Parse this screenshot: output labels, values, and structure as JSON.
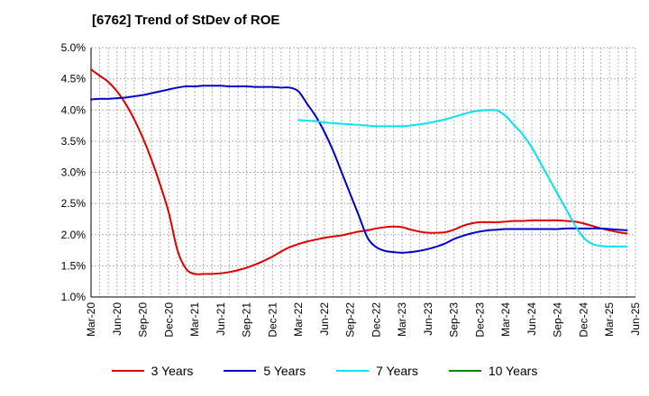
{
  "chart_data": {
    "type": "line",
    "title": "[6762]  Trend of StDev of ROE",
    "xlabel": "",
    "ylabel": "",
    "ylim": [
      1.0,
      5.0
    ],
    "y_ticks": [
      "1.0%",
      "1.5%",
      "2.0%",
      "2.5%",
      "3.0%",
      "3.5%",
      "4.0%",
      "4.5%",
      "5.0%"
    ],
    "x_ticks": [
      "Mar-20",
      "Jun-20",
      "Sep-20",
      "Dec-20",
      "Mar-21",
      "Jun-21",
      "Sep-21",
      "Dec-21",
      "Mar-22",
      "Jun-22",
      "Sep-22",
      "Dec-22",
      "Mar-23",
      "Jun-23",
      "Sep-23",
      "Dec-23",
      "Mar-24",
      "Jun-24",
      "Sep-24",
      "Dec-24",
      "Mar-25",
      "Jun-25"
    ],
    "grid": true,
    "legend_position": "bottom",
    "series": [
      {
        "name": "3 Years",
        "color": "#dd0000",
        "points": [
          [
            "Mar-20",
            4.65
          ],
          [
            "Apr-20",
            4.55
          ],
          [
            "May-20",
            4.45
          ],
          [
            "Jun-20",
            4.3
          ],
          [
            "Jul-20",
            4.1
          ],
          [
            "Aug-20",
            3.85
          ],
          [
            "Sep-20",
            3.55
          ],
          [
            "Oct-20",
            3.2
          ],
          [
            "Nov-20",
            2.8
          ],
          [
            "Dec-20",
            2.35
          ],
          [
            "Jan-21",
            1.75
          ],
          [
            "Feb-21",
            1.45
          ],
          [
            "Mar-21",
            1.37
          ],
          [
            "Apr-21",
            1.37
          ],
          [
            "May-21",
            1.37
          ],
          [
            "Jun-21",
            1.38
          ],
          [
            "Jul-21",
            1.4
          ],
          [
            "Aug-21",
            1.43
          ],
          [
            "Sep-21",
            1.47
          ],
          [
            "Oct-21",
            1.52
          ],
          [
            "Nov-21",
            1.58
          ],
          [
            "Dec-21",
            1.65
          ],
          [
            "Jan-22",
            1.73
          ],
          [
            "Feb-22",
            1.8
          ],
          [
            "Mar-22",
            1.85
          ],
          [
            "Apr-22",
            1.89
          ],
          [
            "May-22",
            1.92
          ],
          [
            "Jun-22",
            1.95
          ],
          [
            "Jul-22",
            1.97
          ],
          [
            "Aug-22",
            1.99
          ],
          [
            "Sep-22",
            2.02
          ],
          [
            "Oct-22",
            2.05
          ],
          [
            "Nov-22",
            2.07
          ],
          [
            "Dec-22",
            2.1
          ],
          [
            "Jan-23",
            2.12
          ],
          [
            "Feb-23",
            2.13
          ],
          [
            "Mar-23",
            2.12
          ],
          [
            "Apr-23",
            2.08
          ],
          [
            "May-23",
            2.05
          ],
          [
            "Jun-23",
            2.03
          ],
          [
            "Jul-23",
            2.03
          ],
          [
            "Aug-23",
            2.04
          ],
          [
            "Sep-23",
            2.08
          ],
          [
            "Oct-23",
            2.14
          ],
          [
            "Nov-23",
            2.18
          ],
          [
            "Dec-23",
            2.2
          ],
          [
            "Jan-24",
            2.2
          ],
          [
            "Feb-24",
            2.2
          ],
          [
            "Mar-24",
            2.21
          ],
          [
            "Apr-24",
            2.22
          ],
          [
            "May-24",
            2.22
          ],
          [
            "Jun-24",
            2.23
          ],
          [
            "Jul-24",
            2.23
          ],
          [
            "Aug-24",
            2.23
          ],
          [
            "Sep-24",
            2.23
          ],
          [
            "Oct-24",
            2.22
          ],
          [
            "Nov-24",
            2.21
          ],
          [
            "Dec-24",
            2.18
          ],
          [
            "Jan-25",
            2.14
          ],
          [
            "Feb-25",
            2.1
          ],
          [
            "Mar-25",
            2.07
          ],
          [
            "Apr-25",
            2.04
          ],
          [
            "May-25",
            2.02
          ]
        ]
      },
      {
        "name": "5 Years",
        "color": "#0000cc",
        "points": [
          [
            "Mar-20",
            4.17
          ],
          [
            "Apr-20",
            4.18
          ],
          [
            "May-20",
            4.18
          ],
          [
            "Jun-20",
            4.19
          ],
          [
            "Jul-20",
            4.2
          ],
          [
            "Aug-20",
            4.22
          ],
          [
            "Sep-20",
            4.24
          ],
          [
            "Oct-20",
            4.27
          ],
          [
            "Nov-20",
            4.3
          ],
          [
            "Dec-20",
            4.33
          ],
          [
            "Jan-21",
            4.36
          ],
          [
            "Feb-21",
            4.38
          ],
          [
            "Mar-21",
            4.38
          ],
          [
            "Apr-21",
            4.39
          ],
          [
            "May-21",
            4.39
          ],
          [
            "Jun-21",
            4.39
          ],
          [
            "Jul-21",
            4.38
          ],
          [
            "Aug-21",
            4.38
          ],
          [
            "Sep-21",
            4.38
          ],
          [
            "Oct-21",
            4.37
          ],
          [
            "Nov-21",
            4.37
          ],
          [
            "Dec-21",
            4.37
          ],
          [
            "Jan-22",
            4.36
          ],
          [
            "Feb-22",
            4.36
          ],
          [
            "Mar-22",
            4.3
          ],
          [
            "Apr-22",
            4.1
          ],
          [
            "May-22",
            3.9
          ],
          [
            "Jun-22",
            3.65
          ],
          [
            "Jul-22",
            3.35
          ],
          [
            "Aug-22",
            3.0
          ],
          [
            "Sep-22",
            2.65
          ],
          [
            "Oct-22",
            2.3
          ],
          [
            "Nov-22",
            1.95
          ],
          [
            "Dec-22",
            1.8
          ],
          [
            "Jan-23",
            1.74
          ],
          [
            "Feb-23",
            1.72
          ],
          [
            "Mar-23",
            1.71
          ],
          [
            "Apr-23",
            1.72
          ],
          [
            "May-23",
            1.74
          ],
          [
            "Jun-23",
            1.77
          ],
          [
            "Jul-23",
            1.81
          ],
          [
            "Aug-23",
            1.86
          ],
          [
            "Sep-23",
            1.93
          ],
          [
            "Oct-23",
            1.98
          ],
          [
            "Nov-23",
            2.02
          ],
          [
            "Dec-23",
            2.05
          ],
          [
            "Jan-24",
            2.07
          ],
          [
            "Feb-24",
            2.08
          ],
          [
            "Mar-24",
            2.09
          ],
          [
            "Apr-24",
            2.09
          ],
          [
            "May-24",
            2.09
          ],
          [
            "Jun-24",
            2.09
          ],
          [
            "Jul-24",
            2.09
          ],
          [
            "Aug-24",
            2.09
          ],
          [
            "Sep-24",
            2.09
          ],
          [
            "Oct-24",
            2.1
          ],
          [
            "Nov-24",
            2.1
          ],
          [
            "Dec-24",
            2.1
          ],
          [
            "Jan-25",
            2.1
          ],
          [
            "Feb-25",
            2.1
          ],
          [
            "Mar-25",
            2.09
          ],
          [
            "Apr-25",
            2.08
          ],
          [
            "May-25",
            2.07
          ]
        ]
      },
      {
        "name": "7 Years",
        "color": "#00e5ee",
        "points": [
          [
            "Mar-22",
            3.84
          ],
          [
            "Apr-22",
            3.83
          ],
          [
            "May-22",
            3.82
          ],
          [
            "Jun-22",
            3.8
          ],
          [
            "Jul-22",
            3.79
          ],
          [
            "Aug-22",
            3.78
          ],
          [
            "Sep-22",
            3.77
          ],
          [
            "Oct-22",
            3.76
          ],
          [
            "Nov-22",
            3.75
          ],
          [
            "Dec-22",
            3.74
          ],
          [
            "Jan-23",
            3.74
          ],
          [
            "Feb-23",
            3.74
          ],
          [
            "Mar-23",
            3.74
          ],
          [
            "Apr-23",
            3.75
          ],
          [
            "May-23",
            3.77
          ],
          [
            "Jun-23",
            3.79
          ],
          [
            "Jul-23",
            3.82
          ],
          [
            "Aug-23",
            3.85
          ],
          [
            "Sep-23",
            3.89
          ],
          [
            "Oct-23",
            3.93
          ],
          [
            "Nov-23",
            3.97
          ],
          [
            "Dec-23",
            3.99
          ],
          [
            "Jan-24",
            4.0
          ],
          [
            "Feb-24",
            3.99
          ],
          [
            "Mar-24",
            3.9
          ],
          [
            "Apr-24",
            3.75
          ],
          [
            "May-24",
            3.6
          ],
          [
            "Jun-24",
            3.4
          ],
          [
            "Jul-24",
            3.15
          ],
          [
            "Aug-24",
            2.9
          ],
          [
            "Sep-24",
            2.65
          ],
          [
            "Oct-24",
            2.4
          ],
          [
            "Nov-24",
            2.15
          ],
          [
            "Dec-24",
            1.95
          ],
          [
            "Jan-25",
            1.85
          ],
          [
            "Feb-25",
            1.82
          ],
          [
            "Mar-25",
            1.81
          ],
          [
            "Apr-25",
            1.81
          ],
          [
            "May-25",
            1.81
          ]
        ]
      },
      {
        "name": "10 Years",
        "color": "#008800",
        "points": []
      }
    ]
  }
}
